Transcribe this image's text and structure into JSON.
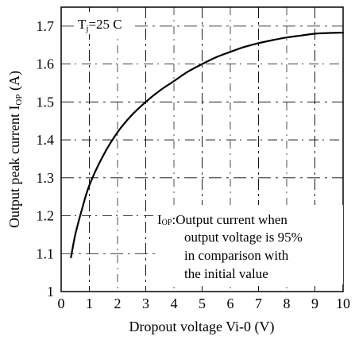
{
  "chart_data": {
    "type": "line",
    "title": "",
    "xlabel": "Dropout voltage Vi-0 (V)",
    "ylabel": "Output peak current I",
    "ylabel_sub": "OP",
    "ylabel_unit": " (A)",
    "xlim": [
      0,
      10
    ],
    "ylim": [
      1.0,
      1.75
    ],
    "x_ticks": [
      0,
      1,
      2,
      3,
      4,
      5,
      6,
      7,
      8,
      9,
      10
    ],
    "y_ticks": [
      1.7,
      1.6,
      1.5,
      1.4,
      1.3,
      1.2,
      1.1,
      1.0
    ],
    "x_tick_labels": [
      "0",
      "1",
      "2",
      "3",
      "4",
      "5",
      "6",
      "7",
      "8",
      "9",
      "10"
    ],
    "y_tick_labels": [
      "1.7",
      "1.6",
      "1.5",
      "1.4",
      "1.3",
      "1.2",
      "1.1",
      "1"
    ],
    "grid": true,
    "series": [
      {
        "x": [
          0.35,
          0.5,
          0.75,
          1.0,
          1.5,
          2.0,
          2.5,
          3.0,
          3.5,
          4.0,
          4.5,
          5.0,
          5.5,
          6.0,
          6.5,
          7.0,
          7.5,
          8.0,
          8.5,
          9.0,
          9.5,
          10.0
        ],
        "y": [
          1.09,
          1.15,
          1.22,
          1.28,
          1.36,
          1.42,
          1.465,
          1.5,
          1.53,
          1.555,
          1.58,
          1.6,
          1.618,
          1.632,
          1.645,
          1.655,
          1.663,
          1.67,
          1.675,
          1.68,
          1.682,
          1.683
        ]
      }
    ],
    "annotations": {
      "condition_main": "T",
      "condition_sub": "j",
      "condition_rest": "=25 C",
      "note_prefix": "I",
      "note_prefix_sub": "OP",
      "note_line1": ":Output current when",
      "note_line2": "output voltage is 95%",
      "note_line3": "in comparison with",
      "note_line4": "the initial value"
    }
  }
}
